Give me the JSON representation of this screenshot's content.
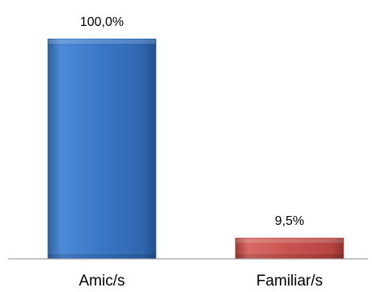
{
  "chart_data": {
    "type": "bar",
    "categories": [
      "Amic/s",
      "Familiar/s"
    ],
    "values": [
      100.0,
      9.5
    ],
    "data_labels": [
      "100,0%",
      "9,5%"
    ],
    "ylim": [
      0,
      100
    ],
    "grid": false,
    "legend": "none",
    "title": "",
    "xlabel": "",
    "ylabel": "",
    "colors": [
      "#3b78c8",
      "#c0504d"
    ],
    "bar_style": "3d-bevel"
  }
}
